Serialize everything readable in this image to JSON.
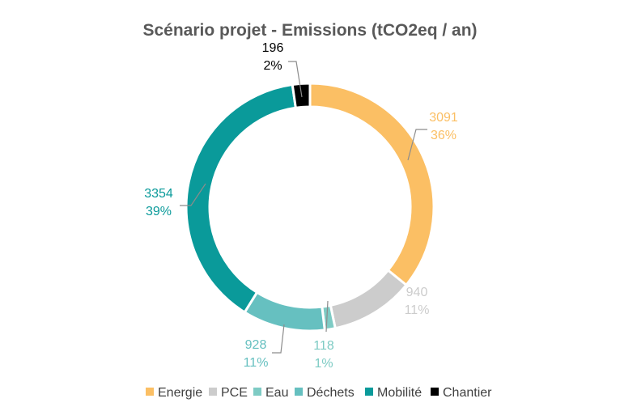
{
  "chart_data": {
    "type": "pie",
    "donut": true,
    "title": "Scénario projet - Emissions (tCO2eq / an)",
    "slices": [
      {
        "name": "Energie",
        "value": 3091,
        "percent": "36%",
        "color": "#FBBF64"
      },
      {
        "name": "PCE",
        "value": 940,
        "percent": "11%",
        "color": "#CCCCCC"
      },
      {
        "name": "Eau",
        "value": 118,
        "percent": "1%",
        "color": "#7ECBC4"
      },
      {
        "name": "Déchets",
        "value": 928,
        "percent": "11%",
        "color": "#66C0C0"
      },
      {
        "name": "Mobilité",
        "value": 3354,
        "percent": "39%",
        "color": "#0A9A9A"
      },
      {
        "name": "Chantier",
        "value": 196,
        "percent": "2%",
        "color": "#000000"
      }
    ],
    "legend_position": "bottom"
  }
}
